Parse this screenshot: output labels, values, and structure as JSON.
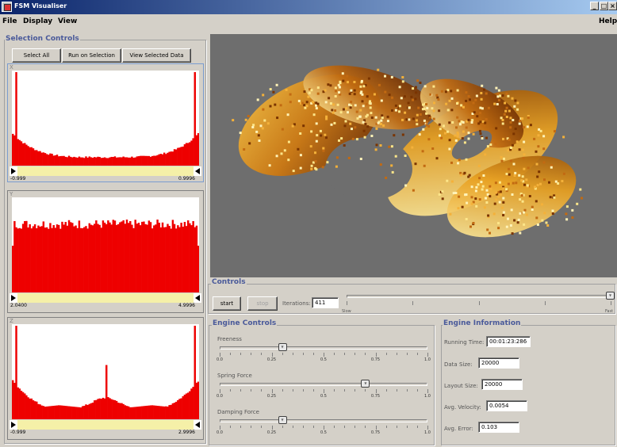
{
  "window": {
    "title": "FSM Visualiser",
    "min": "_",
    "max": "×"
  },
  "menu": {
    "file": "File",
    "display": "Display",
    "view": "View",
    "help": "Help"
  },
  "selection": {
    "title": "Selection Controls",
    "select_all": "Select All",
    "run_on_selection": "Run on Selection",
    "view_selected": "View Selected Data",
    "histograms": [
      {
        "label": "X",
        "min": "-0.999",
        "max": "0.9996",
        "shape": "u"
      },
      {
        "label": "Y",
        "min": "2.0400",
        "max": "4.9996",
        "shape": "flat"
      },
      {
        "label": "Z",
        "min": "-0.999",
        "max": "2.9996",
        "shape": "double-u"
      }
    ]
  },
  "controls": {
    "title": "Controls",
    "start": "start",
    "stop": "stop",
    "iterations_label": "Iterations:",
    "iterations_value": "411",
    "speed_min": "Slow",
    "speed_max": "Fast",
    "speed_value": 1.0
  },
  "engine_controls": {
    "title": "Engine Controls",
    "sliders": [
      {
        "label": "Freeness",
        "value": 0.3
      },
      {
        "label": "Spring Force",
        "value": 0.7
      },
      {
        "label": "Damping Force",
        "value": 0.3
      }
    ],
    "tick_labels": [
      "0.0",
      "0.25",
      "0.5",
      "0.75",
      "1.0"
    ]
  },
  "engine_info": {
    "title": "Engine Information",
    "running_time_label": "Running Time:",
    "running_time": "00:01:23:286",
    "data_size_label": "Data Size:",
    "data_size": "20000",
    "layout_size_label": "Layout Size:",
    "layout_size": "20000",
    "avg_velocity_label": "Avg. Velocity:",
    "avg_velocity": "0.0054",
    "avg_error_label": "Avg. Error:",
    "avg_error": "0.103"
  },
  "colors": {
    "histogram": "#ee0000",
    "range_strip": "#f5f0a8",
    "viz_bg": "#6e6e6e",
    "group_title": "#4a5a9a"
  }
}
